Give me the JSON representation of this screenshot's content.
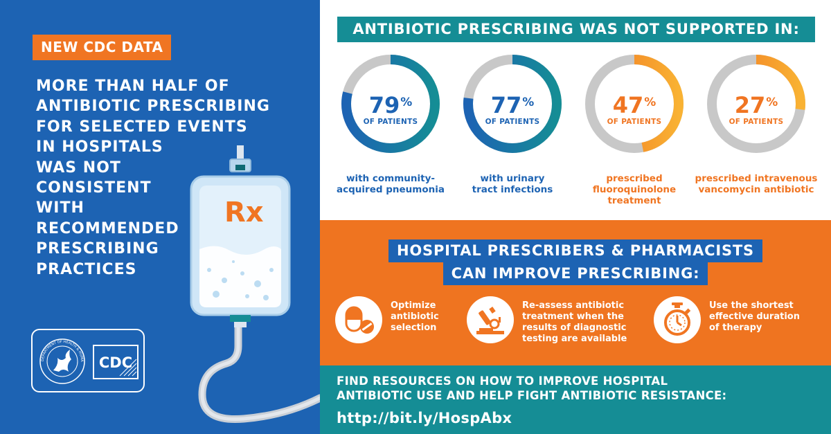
{
  "left": {
    "badge": "NEW CDC DATA",
    "headline_lines": [
      "MORE THAN HALF OF",
      "ANTIBIOTIC PRESCRIBING",
      "FOR SELECTED EVENTS",
      "IN HOSPITALS",
      "WAS NOT",
      "CONSISTENT",
      "WITH",
      "RECOMMENDED",
      "PRESCRIBING",
      "PRACTICES"
    ],
    "rx_symbol": "Rx",
    "logo_text": "CDC",
    "seal_text": "DEPARTMENT OF HEALTH & HUMAN SERVICES USA"
  },
  "stats": {
    "title": "ANTIBIOTIC PRESCRIBING WAS NOT SUPPORTED IN:",
    "items": [
      {
        "value": "79",
        "unit": "%",
        "sub": "OF PATIENTS",
        "desc_lines": [
          "with community-",
          "acquired pneumonia"
        ],
        "percent": 79,
        "color": "#1d63b3",
        "color2": "#158d95"
      },
      {
        "value": "77",
        "unit": "%",
        "sub": "OF PATIENTS",
        "desc_lines": [
          "with urinary",
          "tract infections"
        ],
        "percent": 77,
        "color": "#1d63b3",
        "color2": "#158d95"
      },
      {
        "value": "47",
        "unit": "%",
        "sub": "OF PATIENTS",
        "desc_lines": [
          "prescribed",
          "fluoroquinolone",
          "treatment"
        ],
        "percent": 47,
        "color": "#f07522",
        "color2": "#f9b233"
      },
      {
        "value": "27",
        "unit": "%",
        "sub": "OF PATIENTS",
        "desc_lines": [
          "prescribed intravenous",
          "vancomycin antibiotic"
        ],
        "percent": 27,
        "color": "#f07522",
        "color2": "#f9b233"
      }
    ],
    "track_color": "#c8c8c8"
  },
  "improve": {
    "title_line1": "HOSPITAL PRESCRIBERS & PHARMACISTS",
    "title_line2": "CAN IMPROVE PRESCRIBING:",
    "actions": [
      {
        "icon": "pill-icon",
        "lines": [
          "Optimize",
          "antibiotic",
          "selection"
        ]
      },
      {
        "icon": "microscope-icon",
        "lines": [
          "Re-assess antibiotic",
          "treatment when the",
          "results of diagnostic",
          "testing are available"
        ]
      },
      {
        "icon": "stopwatch-icon",
        "lines": [
          "Use the shortest",
          "effective duration",
          "of therapy"
        ]
      }
    ]
  },
  "footer": {
    "line1": "FIND RESOURCES ON HOW TO IMPROVE HOSPITAL",
    "line2": "ANTIBIOTIC USE AND HELP FIGHT ANTIBIOTIC RESISTANCE:",
    "link": "http://bit.ly/HospAbx"
  },
  "colors": {
    "blue": "#1d63b3",
    "orange": "#f07522",
    "teal": "#158d95"
  }
}
